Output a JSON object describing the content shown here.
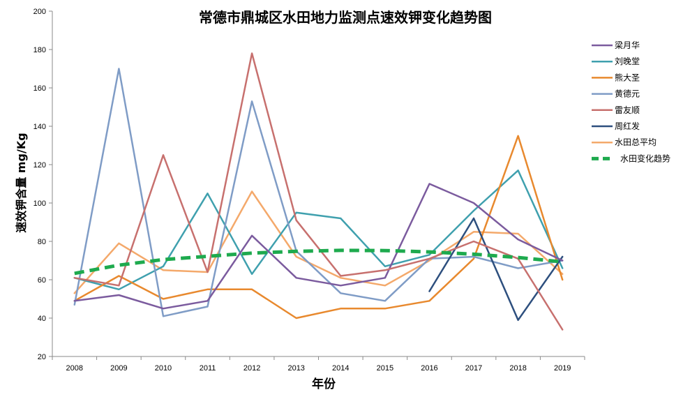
{
  "chart_data": {
    "type": "line",
    "title": "常德市鼎城区水田地力监测点速效钾变化趋势图",
    "xlabel": "年份",
    "ylabel": "速效钾含量   mg/Kg",
    "ylim": [
      20,
      200
    ],
    "yticks": [
      20,
      40,
      60,
      80,
      100,
      120,
      140,
      160,
      180,
      200
    ],
    "categories": [
      "2008",
      "2009",
      "2010",
      "2011",
      "2012",
      "2013",
      "2014",
      "2015",
      "2016",
      "2017",
      "2018",
      "2019"
    ],
    "grid": false,
    "legend_position": "right",
    "series": [
      {
        "name": "梁月华",
        "color": "#7B5B9E",
        "dashed": false,
        "values": [
          49,
          52,
          45,
          49,
          83,
          61,
          57,
          61,
          110,
          100,
          81,
          70
        ]
      },
      {
        "name": "刘晚堂",
        "color": "#3FA0AE",
        "dashed": false,
        "values": [
          61,
          55,
          67,
          105,
          63,
          95,
          92,
          67,
          73,
          96,
          117,
          66
        ]
      },
      {
        "name": "熊大圣",
        "color": "#E8892E",
        "dashed": false,
        "values": [
          49,
          62,
          50,
          55,
          55,
          40,
          45,
          45,
          49,
          71,
          135,
          60
        ]
      },
      {
        "name": "黄德元",
        "color": "#7F9CC6",
        "dashed": false,
        "values": [
          47,
          170,
          41,
          46,
          153,
          75,
          53,
          49,
          71,
          72,
          66,
          70
        ]
      },
      {
        "name": "雷友顺",
        "color": "#C7706E",
        "dashed": false,
        "values": [
          61,
          57,
          125,
          64,
          178,
          91,
          62,
          65,
          71,
          80,
          71,
          34
        ]
      },
      {
        "name": "周红发",
        "color": "#2D4F7E",
        "dashed": false,
        "values": [
          null,
          null,
          null,
          null,
          null,
          null,
          null,
          null,
          54,
          92,
          39,
          72
        ]
      },
      {
        "name": "水田总平均",
        "color": "#F4A96B",
        "dashed": false,
        "values": [
          53,
          79,
          65,
          64,
          106,
          72,
          61,
          57,
          70,
          85,
          84,
          63
        ]
      },
      {
        "name": "水田变化趋势",
        "color": "#1EAA4E",
        "dashed": true,
        "values": [
          63.3,
          67.6,
          70.5,
          72.2,
          73.9,
          74.8,
          75.3,
          75.2,
          74.5,
          73.3,
          71.6,
          69.3
        ]
      }
    ]
  }
}
